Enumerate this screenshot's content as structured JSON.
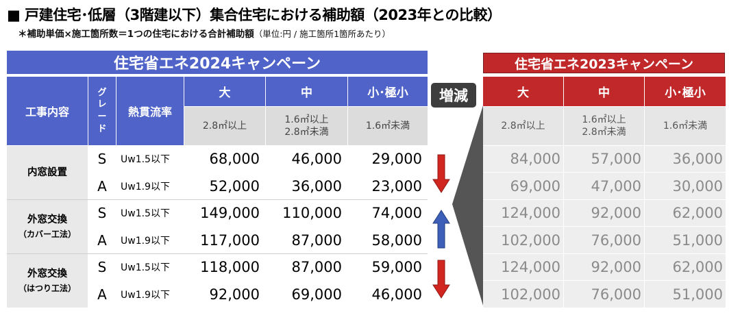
{
  "title": "■ 戸建住宅･低層（3階建以下）集合住宅における補助額（2023年との比較）",
  "note": "＊補助単価×施工箇所数＝1つの住宅における合計補助額",
  "note_unit": "（単位:円 / 施工箇所1箇所あたり）",
  "banner_2024": "住宅省エネ2024キャンペーン",
  "banner_2023": "住宅省エネ2023キャンペーン",
  "header": {
    "work": "工事内容",
    "grade": [
      "グ",
      "レ",
      "ー",
      "ド"
    ],
    "heat": "熱貫流率",
    "sizes": [
      "大",
      "中",
      "小･極小"
    ],
    "size_ranges": [
      [
        "2.8㎡以上"
      ],
      [
        "1.6㎡以上",
        "2.8㎡未満"
      ],
      [
        "1.6㎡未満"
      ]
    ],
    "change": "増減"
  },
  "groups": [
    {
      "label": "内窓設置",
      "sub": ""
    },
    {
      "label": "外窓交換",
      "sub": "（カバー工法）"
    },
    {
      "label": "外窓交換",
      "sub": "（はつり工法）"
    }
  ],
  "rows": [
    {
      "grade": "S",
      "uw": "Uw1.5以下",
      "v2024": [
        "68,000",
        "46,000",
        "29,000"
      ],
      "v2023": [
        "84,000",
        "57,000",
        "36,000"
      ]
    },
    {
      "grade": "A",
      "uw": "Uw1.9以下",
      "v2024": [
        "52,000",
        "36,000",
        "23,000"
      ],
      "v2023": [
        "69,000",
        "47,000",
        "30,000"
      ]
    },
    {
      "grade": "S",
      "uw": "Uw1.5以下",
      "v2024": [
        "149,000",
        "110,000",
        "74,000"
      ],
      "v2023": [
        "124,000",
        "92,000",
        "62,000"
      ]
    },
    {
      "grade": "A",
      "uw": "Uw1.9以下",
      "v2024": [
        "117,000",
        "87,000",
        "58,000"
      ],
      "v2023": [
        "102,000",
        "76,000",
        "51,000"
      ]
    },
    {
      "grade": "S",
      "uw": "Uw1.5以下",
      "v2024": [
        "118,000",
        "87,000",
        "59,000"
      ],
      "v2023": [
        "124,000",
        "92,000",
        "62,000"
      ]
    },
    {
      "grade": "A",
      "uw": "Uw1.9以下",
      "v2024": [
        "92,000",
        "69,000",
        "46,000"
      ],
      "v2023": [
        "102,000",
        "76,000",
        "51,000"
      ]
    }
  ],
  "arrows": [
    {
      "direction": "down",
      "color": "#d0261f"
    },
    {
      "direction": "up",
      "color": "#3d5fb8"
    },
    {
      "direction": "down",
      "color": "#d0261f"
    }
  ]
}
